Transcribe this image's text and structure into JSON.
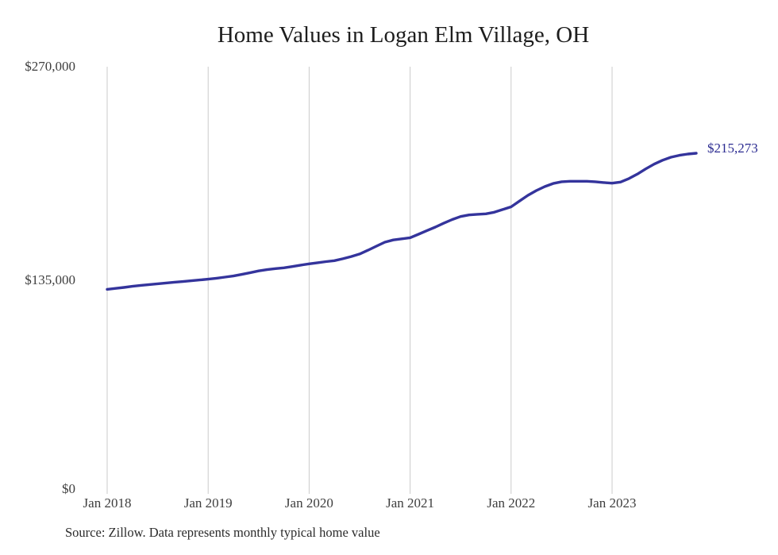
{
  "page": {
    "title": "Home Values in Logan Elm Village, OH",
    "source_note": "Source: Zillow. Data represents monthly typical home value",
    "latest_value_label": "$215,273"
  },
  "colors": {
    "line": "#34349c",
    "latest_value_label": "#2b2b91",
    "gridline": "#cbcbcb",
    "title": "#1d1d1d",
    "tick_label": "#3e3e3e",
    "source_note": "#2b2b2b",
    "background": "#ffffff"
  },
  "chart_data": {
    "type": "line",
    "title": "Home Values in Logan Elm Village, OH",
    "frequency": "monthly",
    "x_start": "Jan 2018",
    "x_end": "Nov 2023",
    "ylim": [
      0,
      270000
    ],
    "grid": "vertical-only",
    "legend": "none",
    "y_ticks": [
      {
        "label": "$0",
        "value": 0
      },
      {
        "label": "$135,000",
        "value": 135000
      },
      {
        "label": "$270,000",
        "value": 270000
      }
    ],
    "x_ticks": [
      {
        "label": "Jan 2018",
        "month_index": 0
      },
      {
        "label": "Jan 2019",
        "month_index": 12
      },
      {
        "label": "Jan 2020",
        "month_index": 24
      },
      {
        "label": "Jan 2021",
        "month_index": 36
      },
      {
        "label": "Jan 2022",
        "month_index": 48
      },
      {
        "label": "Jan 2023",
        "month_index": 60
      }
    ],
    "series": [
      {
        "name": "Typical home value",
        "latest_value": 215273,
        "latest_value_label": "$215,273",
        "values": [
          129300,
          129900,
          130500,
          131200,
          131800,
          132300,
          132800,
          133300,
          133800,
          134200,
          134700,
          135200,
          135700,
          136300,
          137000,
          137700,
          138700,
          139800,
          140900,
          141700,
          142400,
          142900,
          143700,
          144600,
          145400,
          146100,
          146800,
          147400,
          148600,
          150000,
          151600,
          154000,
          156600,
          159100,
          160500,
          161200,
          161900,
          164100,
          166400,
          168600,
          171100,
          173400,
          175300,
          176300,
          176700,
          177000,
          178000,
          179700,
          181400,
          185100,
          188700,
          191700,
          194200,
          196200,
          197300,
          197600,
          197600,
          197600,
          197300,
          196800,
          196400,
          197100,
          199300,
          202100,
          205400,
          208400,
          210900,
          212800,
          214000,
          214800,
          215273
        ]
      }
    ]
  }
}
